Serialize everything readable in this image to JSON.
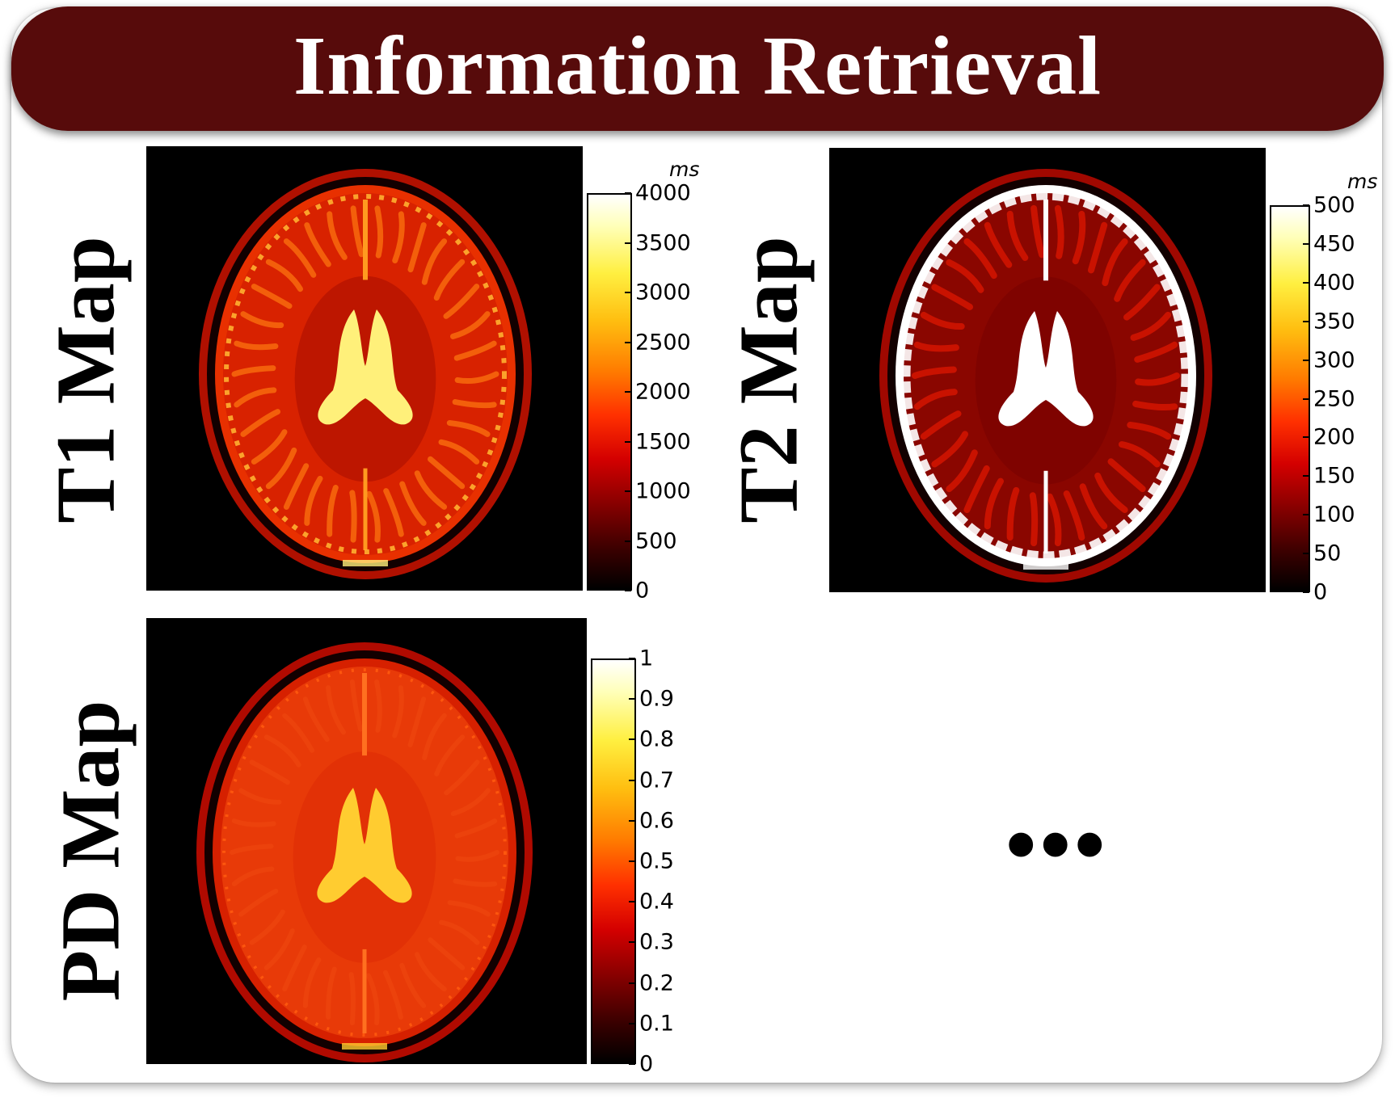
{
  "header": {
    "title": "Information Retrieval"
  },
  "panels": [
    {
      "id": "t1",
      "label": "T1 Map",
      "colorbar": {
        "unit": "ms",
        "ticks": [
          "4000",
          "3500",
          "3000",
          "2500",
          "2000",
          "1500",
          "1000",
          "500",
          "0"
        ]
      }
    },
    {
      "id": "t2",
      "label": "T2 Map",
      "colorbar": {
        "unit": "ms",
        "ticks": [
          "500",
          "450",
          "400",
          "350",
          "300",
          "250",
          "200",
          "150",
          "100",
          "50",
          "0"
        ]
      }
    },
    {
      "id": "pd",
      "label": "PD Map",
      "colorbar": {
        "unit": "",
        "ticks": [
          "1",
          "0.9",
          "0.8",
          "0.7",
          "0.6",
          "0.5",
          "0.4",
          "0.3",
          "0.2",
          "0.1",
          "0"
        ]
      }
    }
  ],
  "continuation": "•••",
  "colors": {
    "banner": "#570b0b",
    "banner_text": "#ffffff",
    "colormap": "hot"
  }
}
